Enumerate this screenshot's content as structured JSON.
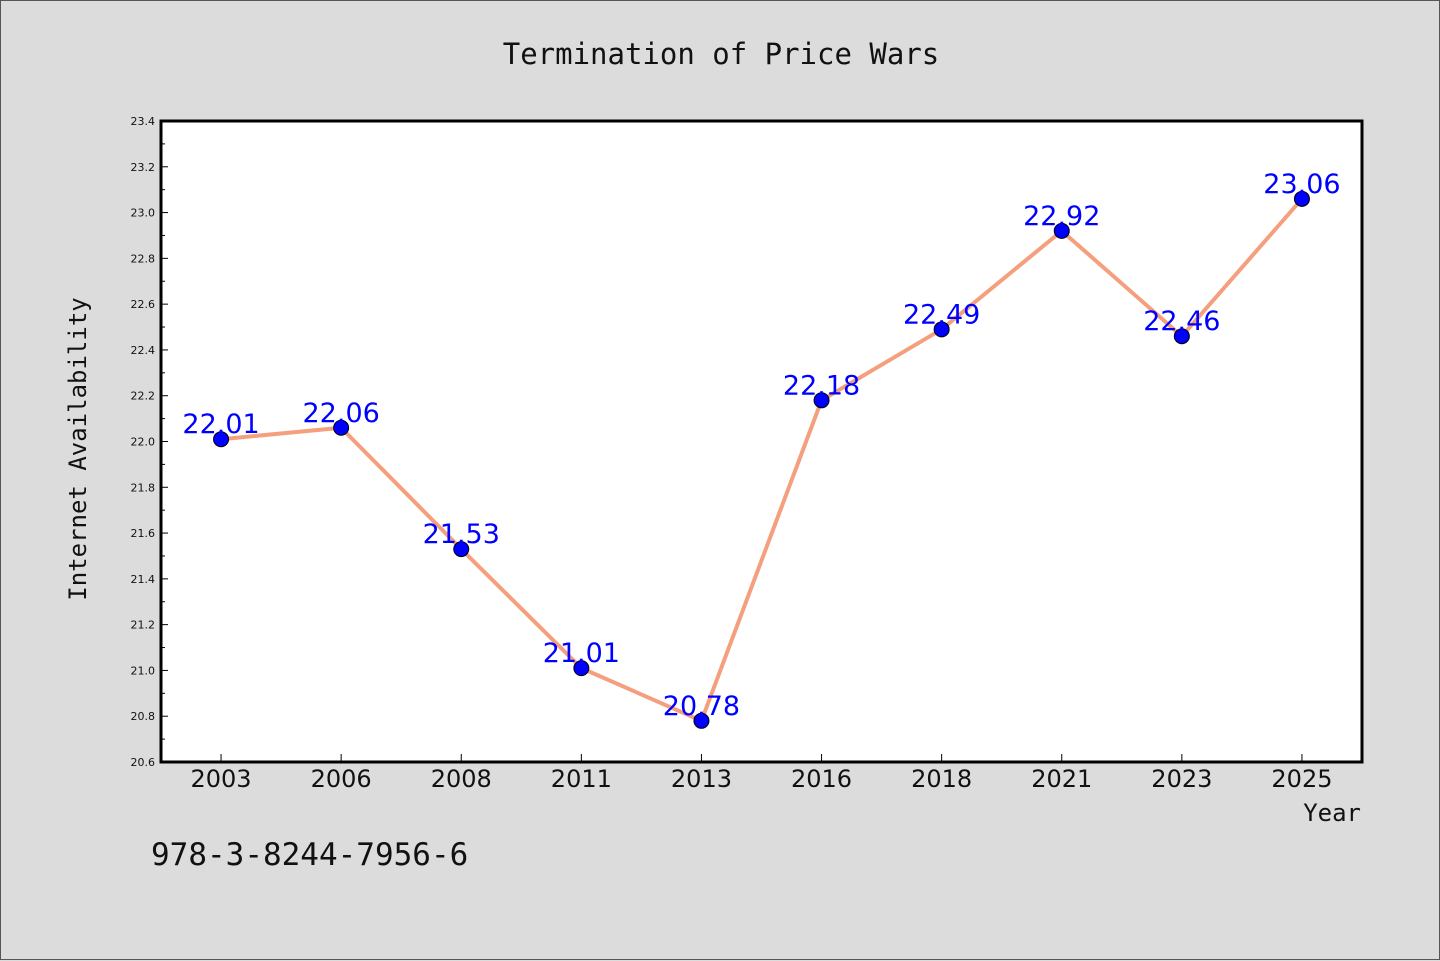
{
  "chart_data": {
    "type": "line",
    "title": "Termination of Price Wars",
    "xlabel": "Year",
    "ylabel": "Internet Availability",
    "categories": [
      "2003",
      "2006",
      "2008",
      "2011",
      "2013",
      "2016",
      "2018",
      "2021",
      "2023",
      "2025"
    ],
    "values": [
      22.01,
      22.06,
      21.53,
      21.01,
      20.78,
      22.18,
      22.49,
      22.92,
      22.46,
      23.06
    ],
    "data_labels": [
      "22.01",
      "22.06",
      "21.53",
      "21.01",
      "20.78",
      "22.18",
      "22.49",
      "22.92",
      "22.46",
      "23.06"
    ],
    "ylim": [
      20.6,
      23.4
    ],
    "yticks": [
      "20.6",
      "20.8",
      "21.0",
      "21.2",
      "21.4",
      "21.6",
      "21.8",
      "22.0",
      "22.2",
      "22.4",
      "22.6",
      "22.8",
      "23.0",
      "23.2",
      "23.4"
    ],
    "grid": false,
    "line_color": "#f4a07f",
    "marker_color": "#0000ff",
    "label_color": "#0000ff",
    "background_color": "#dcdcdc",
    "plot_background": "#ffffff"
  },
  "annotation": "978-3-8244-7956-6"
}
